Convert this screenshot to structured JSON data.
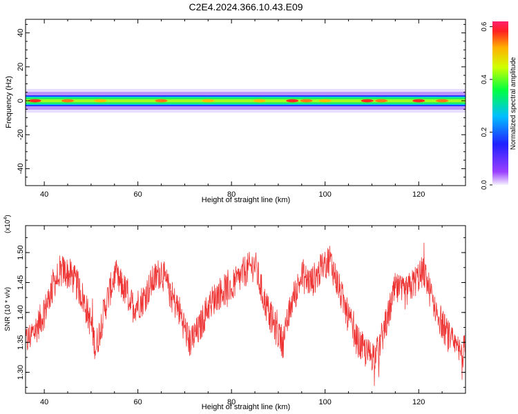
{
  "chart_data": [
    {
      "type": "heatmap",
      "title": "C2E4.2024.366.10.43.E09",
      "xlabel": "Height of straight line (km)",
      "ylabel": "Frequency (Hz)",
      "xlim": [
        36,
        130
      ],
      "ylim": [
        -50,
        48
      ],
      "x_ticks": [
        40,
        60,
        80,
        100,
        120
      ],
      "y_ticks": [
        -40,
        -20,
        0,
        20,
        40
      ],
      "band": {
        "center_hz": 0,
        "core_halfwidth_hz": 1.5,
        "halo_halfwidth_hz": 7
      },
      "hotspots": [
        {
          "x": 38,
          "amp": 0.58
        },
        {
          "x": 45,
          "amp": 0.55
        },
        {
          "x": 52,
          "amp": 0.52
        },
        {
          "x": 65,
          "amp": 0.55
        },
        {
          "x": 75,
          "amp": 0.52
        },
        {
          "x": 86,
          "amp": 0.5
        },
        {
          "x": 93,
          "amp": 0.6
        },
        {
          "x": 96,
          "amp": 0.55
        },
        {
          "x": 100,
          "amp": 0.52
        },
        {
          "x": 109,
          "amp": 0.58
        },
        {
          "x": 112,
          "amp": 0.56
        },
        {
          "x": 120,
          "amp": 0.6
        },
        {
          "x": 125,
          "amp": 0.55
        }
      ],
      "colorbar": {
        "label": "Normalized spectral amplitude",
        "range": [
          0.0,
          0.62
        ],
        "ticks": [
          0.0,
          0.2,
          0.4,
          0.6
        ]
      }
    },
    {
      "type": "line",
      "xlabel": "Height of straight line (km)",
      "ylabel": "SNR (10 * v/v)",
      "y_multiplier": "(x10",
      "y_multiplier_exp": "4",
      "y_multiplier_close": ")",
      "xlim": [
        36,
        130
      ],
      "ylim": [
        1.265,
        1.545
      ],
      "x_ticks": [
        40,
        60,
        80,
        100,
        120
      ],
      "y_ticks": [
        1.3,
        1.35,
        1.4,
        1.45,
        1.5
      ],
      "line_color": "#ee3333",
      "series": [
        {
          "x": [
            36,
            38,
            40,
            42,
            44,
            46,
            48,
            50,
            51,
            53,
            55,
            57,
            59,
            61,
            63,
            65,
            67,
            69,
            71,
            73,
            75,
            77,
            79,
            81,
            83,
            85,
            87,
            89,
            91,
            93,
            95,
            97,
            99,
            101,
            103,
            105,
            107,
            109,
            111,
            113,
            115,
            117,
            119,
            121,
            123,
            125,
            127,
            129,
            130
          ],
          "values": [
            1.35,
            1.37,
            1.4,
            1.45,
            1.47,
            1.46,
            1.43,
            1.38,
            1.34,
            1.41,
            1.46,
            1.44,
            1.41,
            1.42,
            1.45,
            1.47,
            1.43,
            1.4,
            1.35,
            1.37,
            1.41,
            1.43,
            1.44,
            1.45,
            1.47,
            1.48,
            1.42,
            1.38,
            1.35,
            1.42,
            1.46,
            1.45,
            1.47,
            1.49,
            1.44,
            1.39,
            1.35,
            1.33,
            1.33,
            1.38,
            1.44,
            1.43,
            1.45,
            1.47,
            1.42,
            1.38,
            1.35,
            1.33,
            1.34
          ]
        }
      ]
    }
  ]
}
